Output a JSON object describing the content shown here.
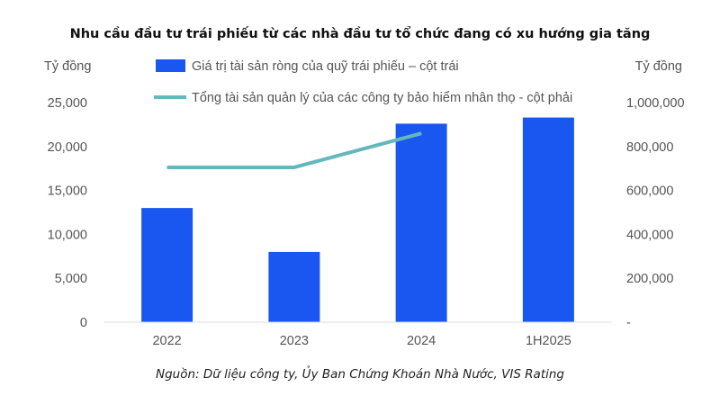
{
  "chart_data": {
    "type": "bar",
    "title": "Nhu cầu đầu tư trái phiếu từ các nhà đầu tư tổ chức đang có xu hướng gia tăng",
    "categories": [
      "2022",
      "2023",
      "2024",
      "1H2025"
    ],
    "ylabel_left": "Tỷ đồng",
    "ylabel_right": "Tỷ đồng",
    "ylim_left": [
      0,
      25000
    ],
    "ylim_right": [
      0,
      1000000
    ],
    "yticks_left": [
      "25,000",
      "20,000",
      "15,000",
      "10,000",
      "5,000",
      "0"
    ],
    "yticks_right": [
      "1,000,000",
      "800,000",
      "600,000",
      "400,000",
      "200,000",
      "-"
    ],
    "grid": false,
    "legend_placement": "top",
    "series": [
      {
        "name": "Giá trị tài sản ròng của quỹ trái phiếu – cột trái",
        "type": "bar",
        "axis": "left",
        "color": "#1a56f0",
        "values": [
          13000,
          8000,
          22600,
          23300
        ]
      },
      {
        "name": "Tổng tài sản quản lý của các công ty bảo hiểm nhân thọ - cột phải",
        "type": "line",
        "axis": "right",
        "color": "#63b8bc",
        "values": [
          705000,
          705000,
          860000,
          null
        ]
      }
    ],
    "source": "Nguồn: Dữ liệu công ty, Ủy Ban Chứng Khoán Nhà Nước, VIS Rating"
  }
}
